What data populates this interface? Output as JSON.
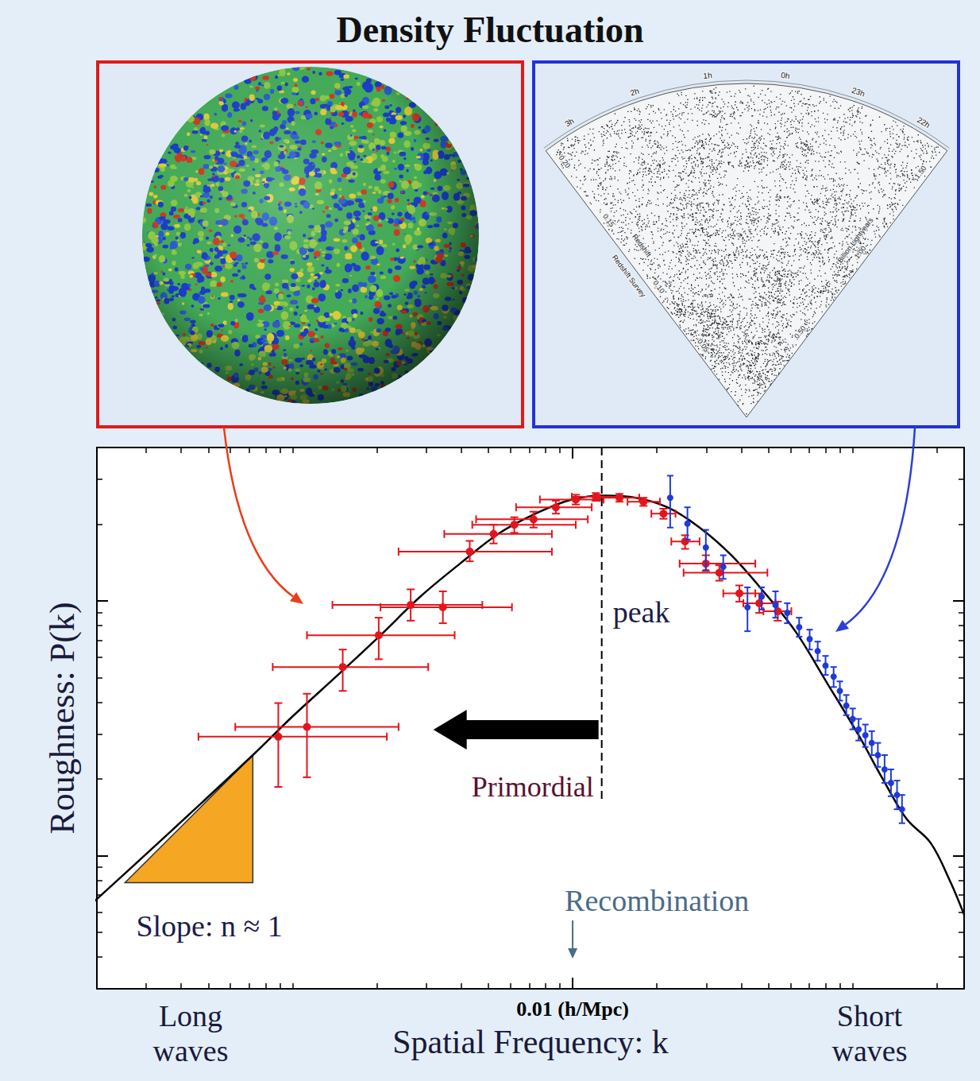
{
  "chart_data": {
    "type": "scatter",
    "title": "Density Fluctuation",
    "x_label": "Spatial Frequency: k",
    "y_label": "Roughness: P(k)",
    "log": true,
    "grid": false,
    "tick_labels": "x",
    "xlim": [
      0.0002,
      0.25
    ],
    "xticks": [
      {
        "value": 0.01,
        "label": "0.01 (h/Mpc)"
      }
    ],
    "ylim": [
      300,
      40000
    ],
    "yticks": [
      1000,
      10000
    ],
    "x_end_labels": [
      "Long waves",
      "Short waves"
    ],
    "series": [
      {
        "type": "line",
        "color": "#000000",
        "marker": "none",
        "line_style": "solid",
        "x": [
          0.000196,
          0.000328,
          0.000721,
          0.001,
          0.00148,
          0.00206,
          0.00286,
          0.00396,
          0.0055,
          0.00764,
          0.00993,
          0.0129,
          0.0168,
          0.0218,
          0.0284,
          0.0369,
          0.048,
          0.0624,
          0.0811,
          0.105,
          0.128,
          0.156,
          0.19,
          0.224,
          0.25
        ],
        "values": [
          662,
          1110,
          2480,
          3520,
          5220,
          7330,
          10400,
          14000,
          18500,
          22400,
          25000,
          25900,
          25400,
          23300,
          19400,
          15100,
          10900,
          7600,
          4750,
          2970,
          2000,
          1390,
          1120,
          783,
          586
        ]
      },
      {
        "type": "scatter",
        "color": "#e3151c",
        "marker": "circle",
        "x": [
          0.000889,
          0.001125,
          0.00151,
          0.00203,
          0.00264,
          0.00344,
          0.00429,
          0.00522,
          0.00619,
          0.00725,
          0.00871,
          0.01026,
          0.0121,
          0.0147,
          0.0179,
          0.0211,
          0.0252,
          0.0299,
          0.0334,
          0.0394,
          0.0464,
          0.054
        ],
        "values": [
          2930,
          3200,
          5500,
          7330,
          9640,
          9440,
          15600,
          18300,
          19900,
          20900,
          23300,
          25000,
          25600,
          25400,
          24500,
          22000,
          17100,
          14000,
          12900,
          10700,
          9790,
          9100
        ],
        "x_lower": [
          0.000461,
          0.000624,
          0.000849,
          0.001125,
          0.001387,
          0.00206,
          0.00239,
          0.00348,
          0.00438,
          0.00452,
          0.00628,
          0.00764,
          0.00993,
          0.0125,
          0.0157,
          0.0191,
          0.0225,
          0.0241,
          0.0249,
          0.0345,
          0.0407,
          0.048
        ],
        "x_upper": [
          0.00217,
          0.00239,
          0.00305,
          0.00379,
          0.00476,
          0.00607,
          0.00843,
          0.00843,
          0.01026,
          0.01133,
          0.0117,
          0.0129,
          0.0147,
          0.0173,
          0.0205,
          0.0233,
          0.0284,
          0.0449,
          0.0496,
          0.0449,
          0.053,
          0.0604
        ],
        "y_lower": [
          1860,
          2030,
          4430,
          5900,
          8360,
          8170,
          14300,
          16800,
          18500,
          19400,
          22000,
          23900,
          24700,
          24500,
          23600,
          21000,
          16000,
          13100,
          12000,
          9930,
          8970,
          8360
        ],
        "y_upper": [
          3970,
          4320,
          6440,
          8590,
          11100,
          10900,
          17200,
          19900,
          21300,
          22400,
          24700,
          26100,
          26500,
          26300,
          25400,
          23000,
          18100,
          15100,
          13800,
          11500,
          10700,
          9930
        ]
      },
      {
        "type": "scatter",
        "color": "#1f3ad6",
        "marker": "circle",
        "x": [
          0.0223,
          0.0257,
          0.0299,
          0.0345,
          0.0421,
          0.0473,
          0.053,
          0.0584,
          0.0644,
          0.0702,
          0.075,
          0.08,
          0.0855,
          0.09,
          0.0949,
          0.1,
          0.105,
          0.111,
          0.117,
          0.123,
          0.13,
          0.137,
          0.144,
          0.15
        ],
        "values": [
          25400,
          20100,
          16200,
          13600,
          9440,
          10400,
          9640,
          8970,
          7890,
          7080,
          6350,
          5570,
          5040,
          4430,
          3880,
          3440,
          3130,
          2970,
          2770,
          2480,
          2180,
          1930,
          1730,
          1520
        ],
        "y_lower": [
          19400,
          17400,
          13200,
          12200,
          7600,
          9250,
          8590,
          8170,
          7230,
          6440,
          5820,
          5120,
          4590,
          4060,
          3560,
          3130,
          2830,
          2670,
          2480,
          2230,
          1930,
          1710,
          1520,
          1340
        ],
        "y_upper": [
          31000,
          23300,
          19000,
          15100,
          11300,
          11300,
          10900,
          9790,
          8590,
          7710,
          6920,
          6080,
          5500,
          4830,
          4270,
          3780,
          3440,
          3270,
          3080,
          2770,
          2480,
          2180,
          1970,
          1730
        ]
      }
    ],
    "annotations": {
      "peak": {
        "label": "peak",
        "k": 0.0127
      },
      "primordial": {
        "label": "Primordial"
      },
      "recombination": {
        "label": "Recombination",
        "k": 0.01
      },
      "slope": {
        "label": "Slope: n ≈ 1",
        "k": [
          0.000252,
          0.000721
        ],
        "P": [
          783,
          2480
        ]
      }
    }
  },
  "panels": {
    "cmb": {
      "color": "#e01a1a"
    },
    "survey": {
      "color": "#2233d6",
      "ra_labels": [
        "3h",
        "2h",
        "1h",
        "0h",
        "23h",
        "22h"
      ],
      "redshift_labels": [
        "0.05",
        "0.10",
        "0.15",
        "0.20"
      ],
      "redshift_title": "Redshift",
      "distance_labels": [
        "0.50",
        "1.00",
        "1.50"
      ],
      "distance_title": "Billion Lightyears",
      "survey_title": "Redshift Survey"
    }
  }
}
